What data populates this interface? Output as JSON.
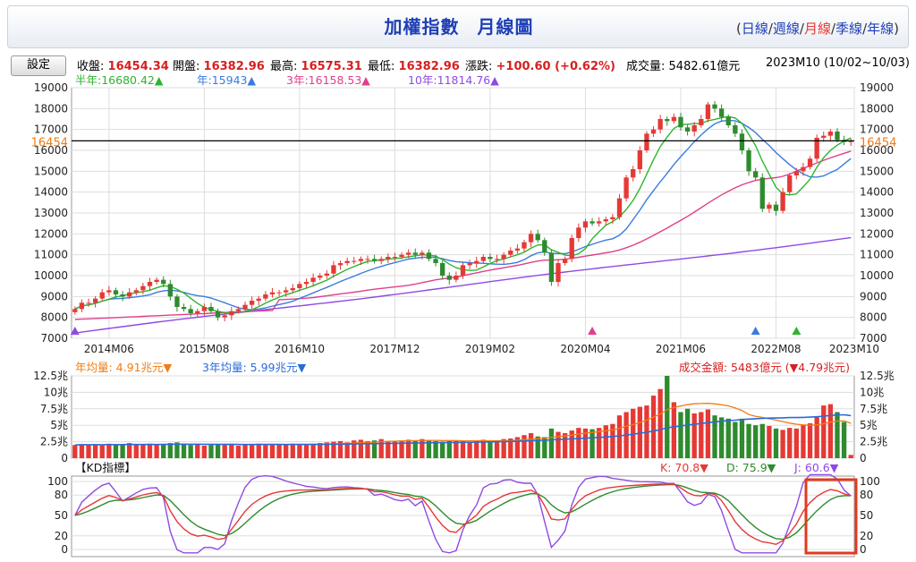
{
  "header": {
    "title_main": "加權指數",
    "title_sub": "月線圖",
    "periods": [
      "日線",
      "週線",
      "月線",
      "季線",
      "年線"
    ],
    "active_period": "月線"
  },
  "quote": {
    "settings_label": "設定",
    "close_label": "收盤:",
    "close": "16454.34",
    "open_label": "開盤:",
    "open": "16382.96",
    "high_label": "最高:",
    "high": "16575.31",
    "low_label": "最低:",
    "low": "16382.96",
    "change_label": "漲跌:",
    "change": "+100.60 (+0.62%)",
    "volume_label": "成交量:",
    "volume": "5482.61億元",
    "period_label": "2023M10 (10/02~10/03)"
  },
  "legend_price": [
    {
      "text": "半年:16680.42▲",
      "color": "#2db52d"
    },
    {
      "text": "年:15943▲",
      "color": "#3a7be0"
    },
    {
      "text": "3年:16158.53▲",
      "color": "#e0408a"
    },
    {
      "text": "10年:11814.76▲",
      "color": "#8e4be3"
    }
  ],
  "legend_volume": [
    {
      "text": "年均量: 4.91兆元▼",
      "color": "#f07c14"
    },
    {
      "text": "3年均量: 5.99兆元▼",
      "color": "#2a6bd8"
    }
  ],
  "volume_summary": "成交金額: 5483億元 (▼4.79兆元)",
  "kd": {
    "title": "【KD指標】",
    "k_text": "K: 70.8▼",
    "d_text": "D: 75.9▼",
    "j_text": "J: 60.6▼",
    "k_color": "#e53935",
    "d_color": "#2e8b2e",
    "j_color": "#8e4be3"
  },
  "colors": {
    "up": "#e53935",
    "down": "#2e8b2e",
    "grid": "#dddddd"
  },
  "chart_data": [
    {
      "type": "candlestick",
      "title": "加權指數 月線圖",
      "x_ticks": [
        "2014M06",
        "2015M08",
        "2016M10",
        "2017M12",
        "2019M02",
        "2020M04",
        "2021M06",
        "2022M08",
        "2023M10"
      ],
      "ylim": [
        7000,
        19000
      ],
      "y_ticks": [
        7000,
        8000,
        9000,
        10000,
        11000,
        12000,
        13000,
        14000,
        15000,
        16000,
        17000,
        18000,
        19000
      ],
      "current_line": {
        "value": 16454,
        "label": "16454"
      },
      "markers": [
        {
          "month": 0,
          "color": "#8e4be3"
        },
        {
          "month": 76,
          "color": "#e0408a"
        },
        {
          "month": 100,
          "color": "#3a7be0"
        },
        {
          "month": 106,
          "color": "#2db52d"
        }
      ],
      "closes": [
        8400,
        8700,
        8700,
        8900,
        9200,
        9300,
        9100,
        9000,
        9200,
        9300,
        9500,
        9700,
        9800,
        9600,
        9000,
        8500,
        8400,
        8200,
        8300,
        8500,
        8300,
        8000,
        8100,
        8300,
        8400,
        8600,
        8800,
        8900,
        9100,
        9200,
        9200,
        9300,
        9400,
        9600,
        9700,
        9900,
        10000,
        10100,
        10500,
        10600,
        10700,
        10700,
        10800,
        10800,
        10700,
        10800,
        10900,
        10900,
        11000,
        11100,
        11000,
        11100,
        10800,
        10600,
        10000,
        9800,
        10000,
        10500,
        10600,
        10700,
        10900,
        10800,
        10800,
        11000,
        11200,
        11300,
        11600,
        12000,
        11700,
        11100,
        9700,
        10600,
        10800,
        11800,
        12300,
        12600,
        12500,
        12600,
        12700,
        12800,
        13700,
        14700,
        15100,
        16000,
        16800,
        17000,
        17500,
        17400,
        17600,
        17100,
        16900,
        17200,
        17500,
        18200,
        18000,
        17600,
        17200,
        16800,
        16000,
        15000,
        14700,
        13200,
        13400,
        13100,
        14000,
        14800,
        15000,
        15200,
        15600,
        16600,
        16700,
        16900,
        16500,
        16400,
        16454
      ],
      "opens": [
        null
      ],
      "ma_half_year_last": 16680.42,
      "ma_year_last": 15943,
      "ma_3year_last": 16158.53,
      "ma_10year_last": 11814.76
    },
    {
      "type": "bar",
      "title": "成交金額",
      "ylim": [
        0,
        12.5
      ],
      "y_ticks": [
        "0",
        "2.5兆",
        "5兆",
        "7.5兆",
        "10兆",
        "12.5兆"
      ],
      "values": [
        2.0,
        2.1,
        2.0,
        2.1,
        2.0,
        2.2,
        2.0,
        2.1,
        2.3,
        2.0,
        2.1,
        2.2,
        2.0,
        2.1,
        2.3,
        2.4,
        2.1,
        2.0,
        2.1,
        1.9,
        2.0,
        2.1,
        2.0,
        2.2,
        1.9,
        2.0,
        2.1,
        2.2,
        2.0,
        2.1,
        2.1,
        2.0,
        2.2,
        2.1,
        2.0,
        2.2,
        2.3,
        2.4,
        2.5,
        2.6,
        2.4,
        2.7,
        2.8,
        2.6,
        2.7,
        2.9,
        2.5,
        2.6,
        2.7,
        2.8,
        2.6,
        2.9,
        2.7,
        2.6,
        2.5,
        2.6,
        2.7,
        2.6,
        2.5,
        2.6,
        2.8,
        2.6,
        2.7,
        2.9,
        3.0,
        3.2,
        3.5,
        3.8,
        3.3,
        3.2,
        4.5,
        4.0,
        3.8,
        4.2,
        4.6,
        4.5,
        4.4,
        4.6,
        5.0,
        5.2,
        6.5,
        7.0,
        7.5,
        7.8,
        8.0,
        9.5,
        10.5,
        12.5,
        8.5,
        7.0,
        7.5,
        6.8,
        7.0,
        7.4,
        6.5,
        6.2,
        6.0,
        5.5,
        6.0,
        5.2,
        5.0,
        5.2,
        4.9,
        4.5,
        4.3,
        4.6,
        4.5,
        5.0,
        5.3,
        6.2,
        8.0,
        8.2,
        7.0,
        5.5,
        0.5
      ]
    },
    {
      "type": "line",
      "title": "KD指標",
      "ylim": [
        0,
        100
      ],
      "y_ticks": [
        0,
        20,
        50,
        80,
        100
      ],
      "k_last": 70.8,
      "d_last": 75.9,
      "j_last": 60.6
    }
  ]
}
